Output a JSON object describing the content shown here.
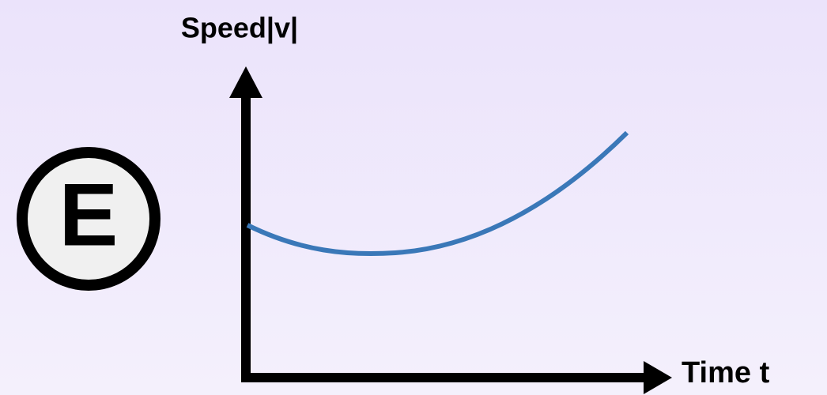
{
  "labels": {
    "marker": "E",
    "y_axis": "Speed|v|",
    "x_axis": "Time t"
  }
}
